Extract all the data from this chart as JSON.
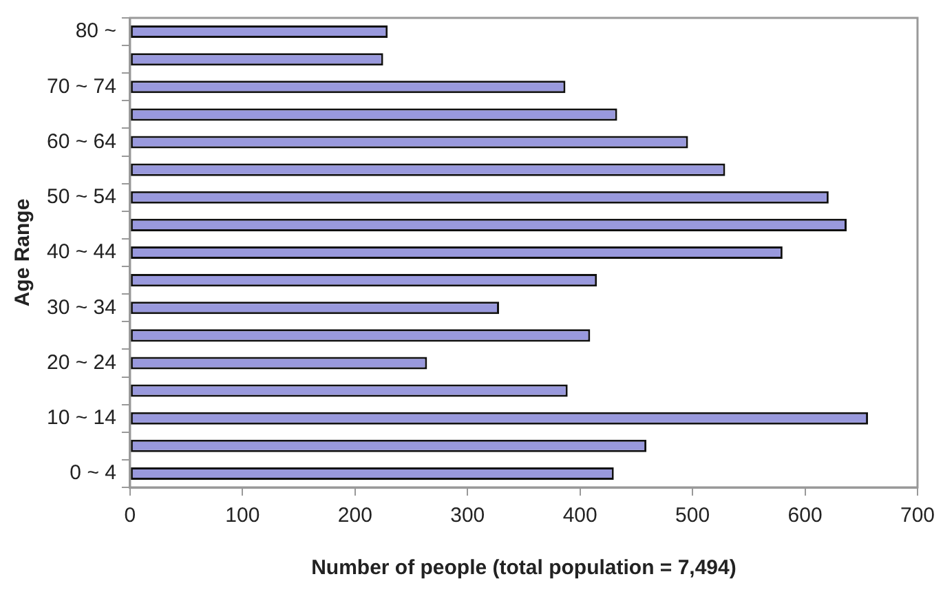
{
  "chart_data": {
    "type": "bar",
    "orientation": "horizontal",
    "xlabel": "Number of people (total population = 7,494)",
    "ylabel": "Age Range",
    "categories": [
      "80 ~",
      null,
      "70 ~ 74",
      null,
      "60 ~ 64",
      null,
      "50 ~ 54",
      null,
      "40 ~ 44",
      null,
      "30 ~ 34",
      null,
      "20 ~ 24",
      null,
      "10 ~ 14",
      null,
      "0 ~ 4"
    ],
    "values": [
      229,
      225,
      387,
      433,
      496,
      529,
      621,
      637,
      580,
      415,
      328,
      409,
      264,
      389,
      656,
      459,
      430
    ],
    "color": "#9999dd",
    "xlim": [
      0,
      700
    ],
    "xticks": [
      0,
      100,
      200,
      300,
      400,
      500,
      600,
      700
    ],
    "grid": false,
    "legend": false
  }
}
